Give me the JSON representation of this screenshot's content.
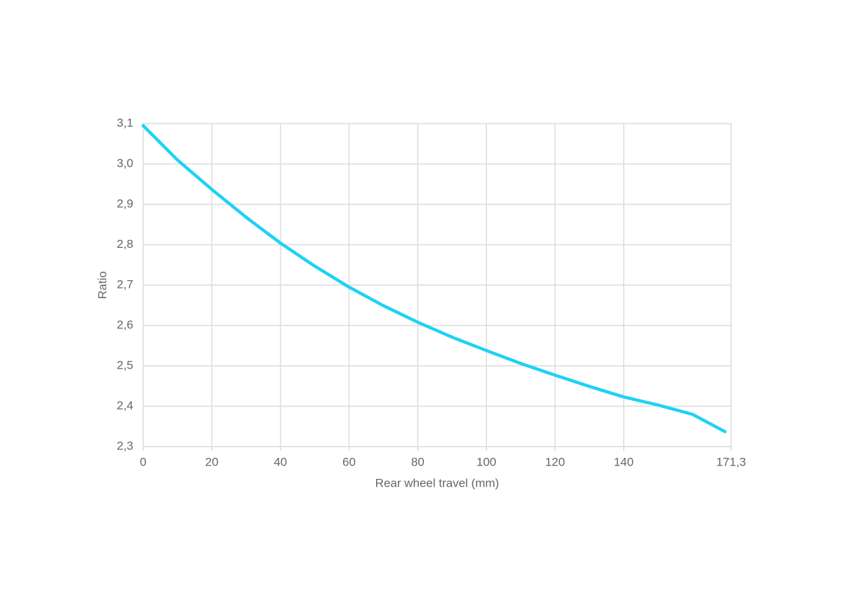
{
  "chart_data": {
    "type": "line",
    "x_label": "Rear wheel travel (mm)",
    "y_label": "Ratio",
    "x": [
      0,
      10,
      20,
      30,
      40,
      50,
      60,
      70,
      80,
      90,
      100,
      110,
      120,
      130,
      140,
      150,
      160,
      169.5
    ],
    "series": [
      {
        "name": "Ratio",
        "color": "#1ed2f4",
        "values": [
          3.095,
          3.01,
          2.937,
          2.868,
          2.804,
          2.747,
          2.695,
          2.649,
          2.608,
          2.571,
          2.538,
          2.506,
          2.477,
          2.449,
          2.423,
          2.403,
          2.38,
          2.337
        ]
      }
    ],
    "xlim": [
      0,
      171.3
    ],
    "ylim": [
      2.3,
      3.1
    ],
    "xticks": [
      0,
      20,
      40,
      60,
      80,
      100,
      120,
      140,
      {
        "value": 171.3,
        "label": "171,3"
      }
    ],
    "yticks": [
      {
        "value": 2.3,
        "label": "2,3"
      },
      {
        "value": 2.4,
        "label": "2,4"
      },
      {
        "value": 2.5,
        "label": "2,5"
      },
      {
        "value": 2.6,
        "label": "2,6"
      },
      {
        "value": 2.7,
        "label": "2,7"
      },
      {
        "value": 2.8,
        "label": "2,8"
      },
      {
        "value": 2.9,
        "label": "2,9"
      },
      {
        "value": 3.0,
        "label": "3,0"
      },
      {
        "value": 3.1,
        "label": "3,1"
      }
    ],
    "grid": true
  }
}
